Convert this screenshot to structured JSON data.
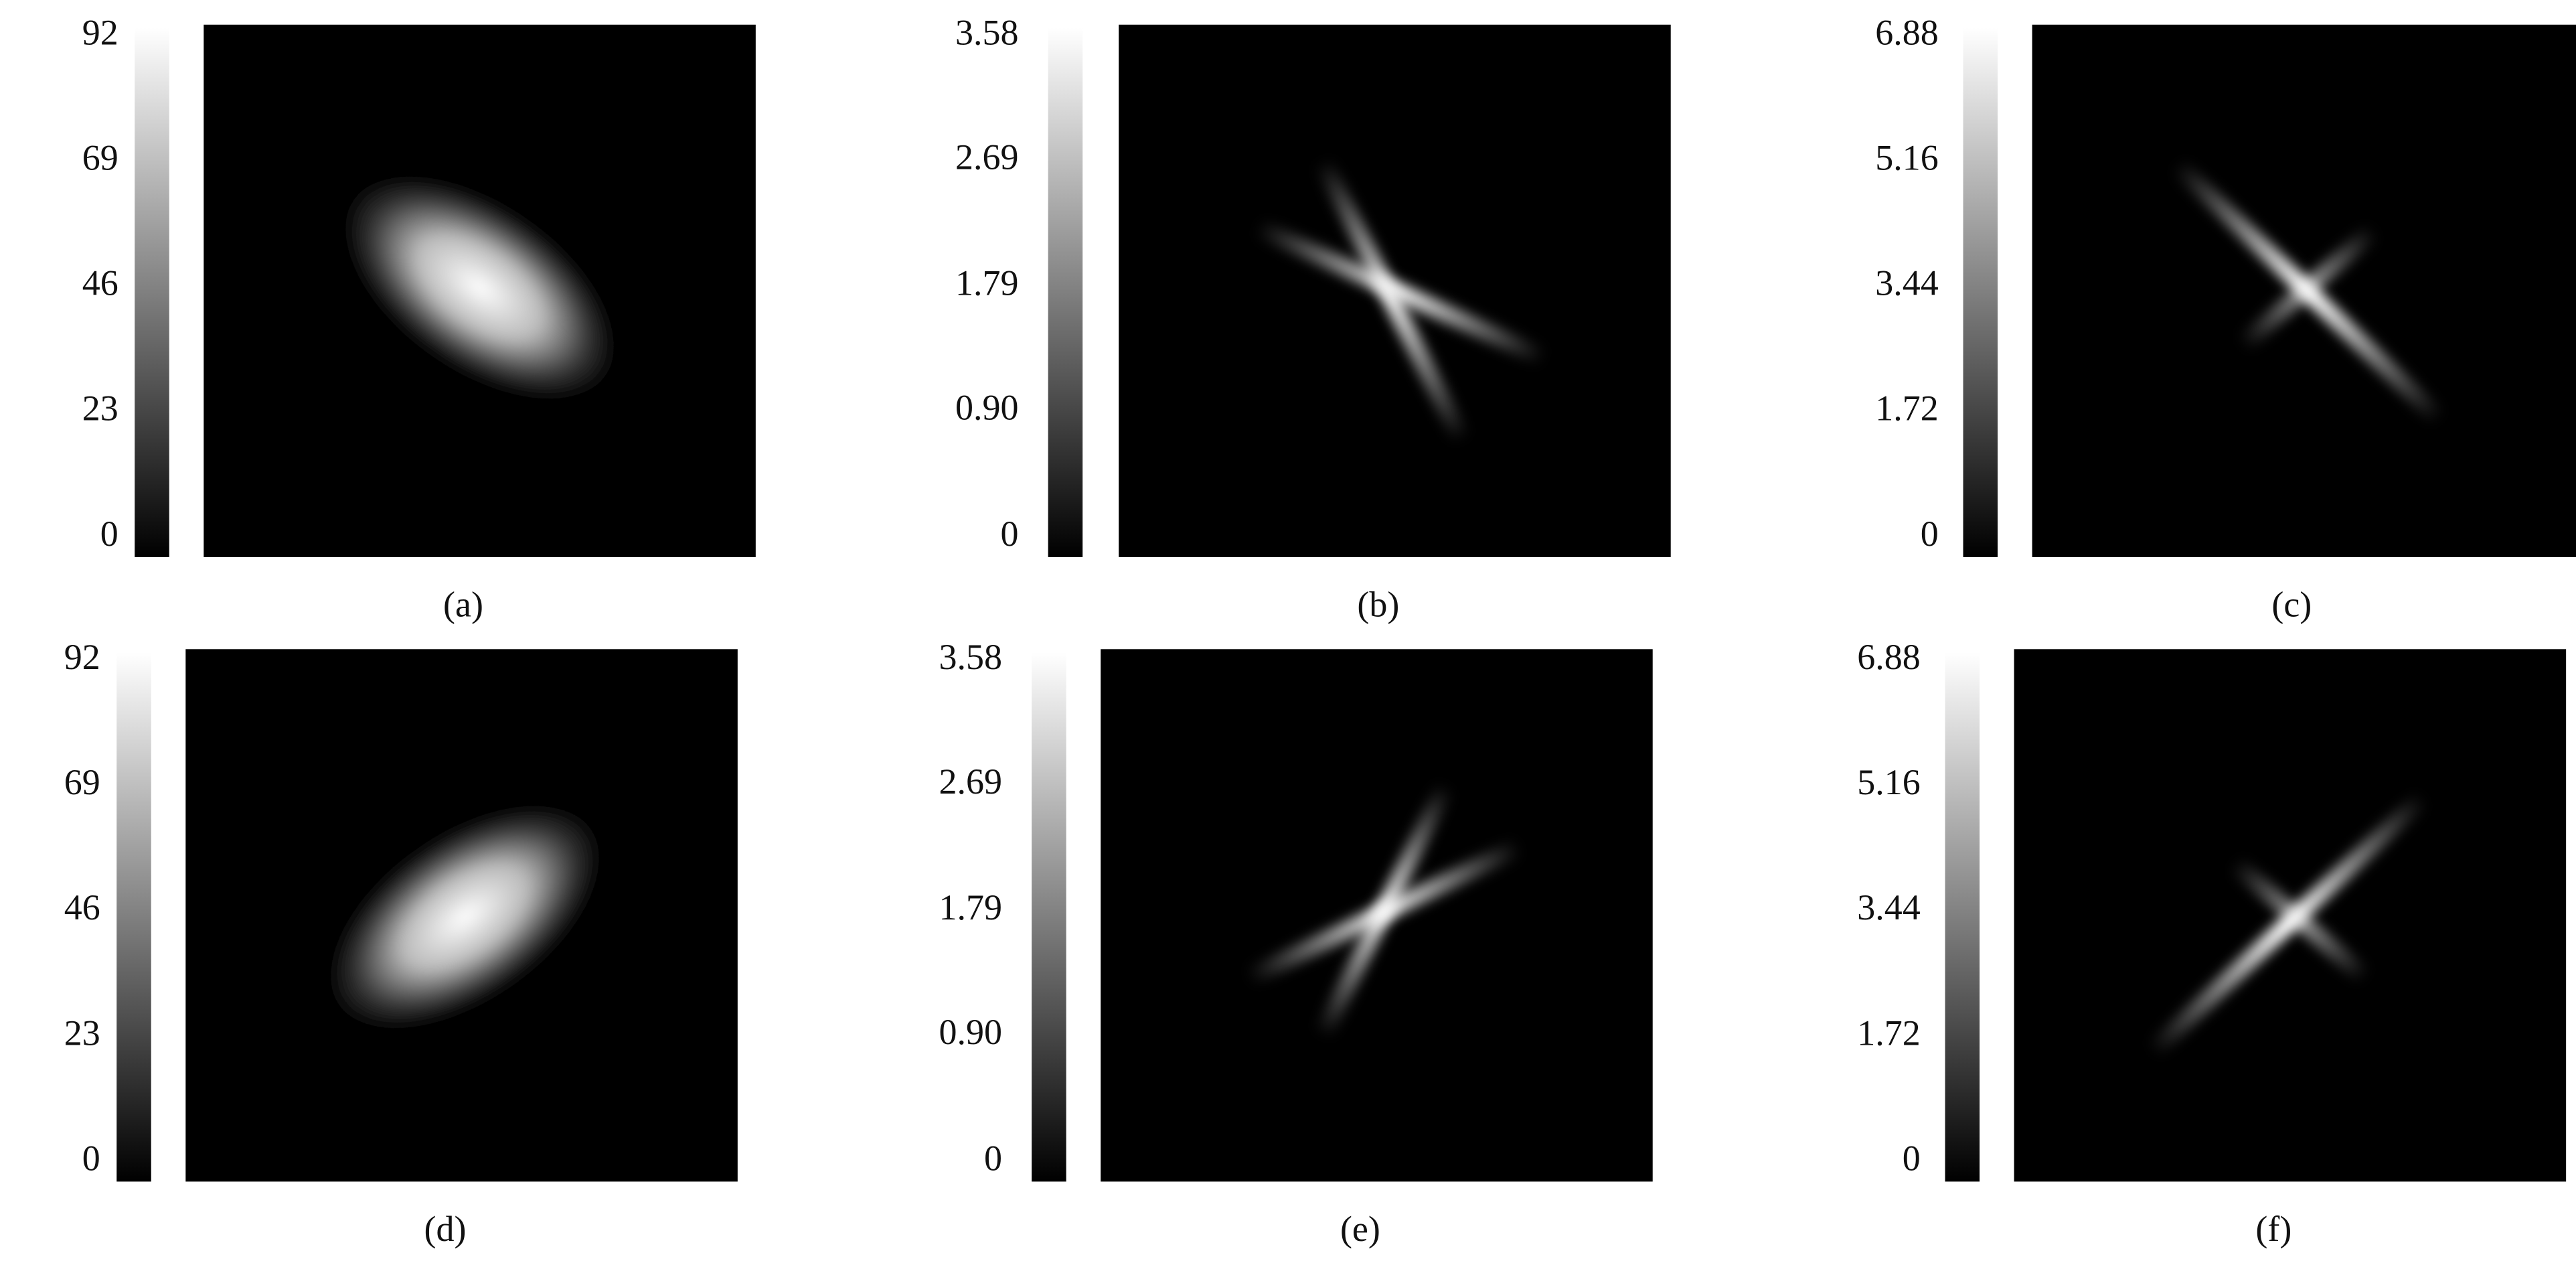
{
  "chart_data": [
    {
      "type": "heatmap",
      "caption": "(a)",
      "colormap": "gray",
      "clim": [
        0,
        92
      ],
      "cticks": [
        0,
        23,
        46,
        69,
        92
      ]
    },
    {
      "type": "heatmap",
      "caption": "(b)",
      "colormap": "gray",
      "clim": [
        0,
        3.58
      ],
      "cticks": [
        0,
        {
          "value": 0.9,
          "label": "0.90"
        },
        1.79,
        2.69,
        3.58
      ]
    },
    {
      "type": "heatmap",
      "caption": "(c)",
      "colormap": "gray",
      "clim": [
        0,
        6.88
      ],
      "cticks": [
        0,
        1.72,
        3.44,
        5.16,
        6.88
      ]
    },
    {
      "type": "heatmap",
      "caption": "(d)",
      "colormap": "gray",
      "clim": [
        0,
        92
      ],
      "cticks": [
        0,
        23,
        46,
        69,
        92
      ]
    },
    {
      "type": "heatmap",
      "caption": "(e)",
      "colormap": "gray",
      "clim": [
        0,
        3.58
      ],
      "cticks": [
        0,
        {
          "value": 0.9,
          "label": "0.90"
        },
        1.79,
        2.69,
        3.58
      ]
    },
    {
      "type": "heatmap",
      "caption": "(f)",
      "colormap": "gray",
      "clim": [
        0,
        6.88
      ],
      "cticks": [
        0,
        1.72,
        3.44,
        5.16,
        6.88
      ]
    }
  ]
}
